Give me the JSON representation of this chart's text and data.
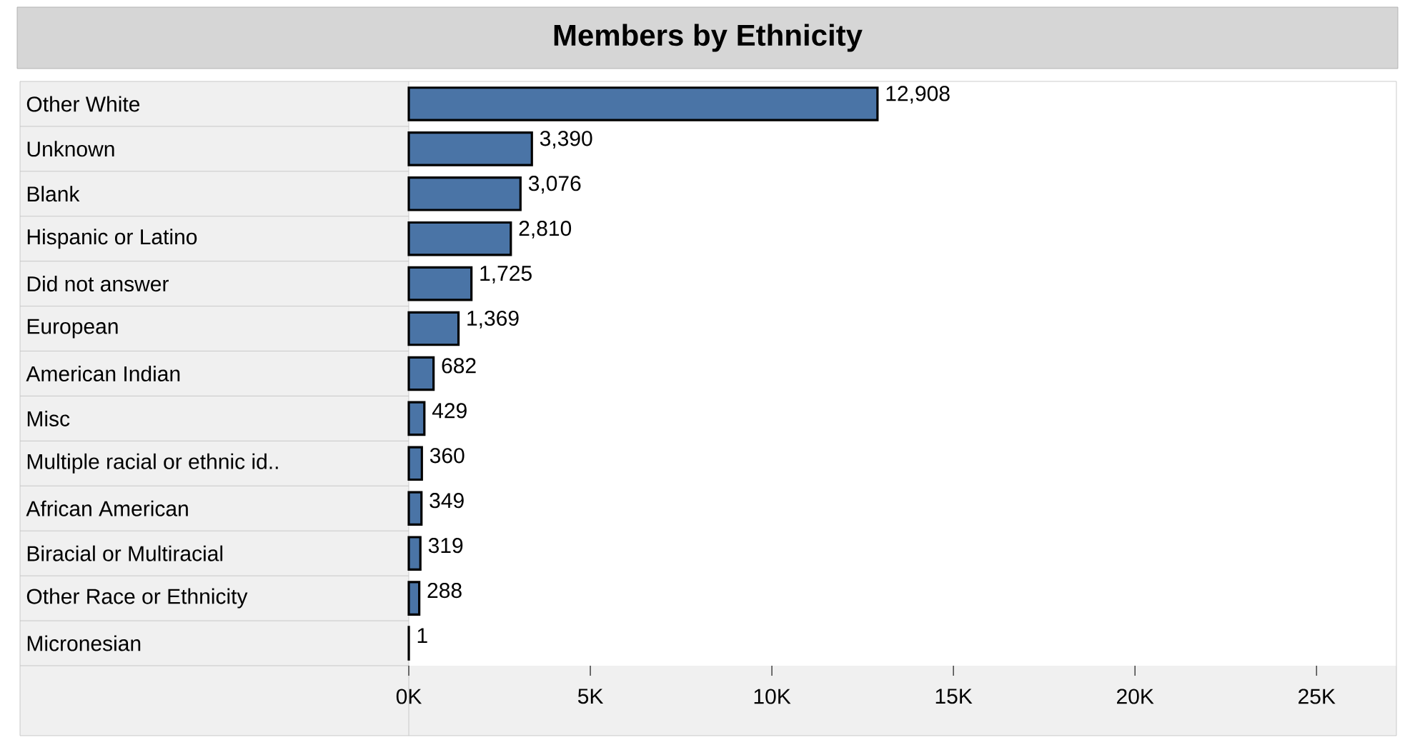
{
  "chart_data": {
    "type": "bar",
    "orientation": "horizontal",
    "title": "Members by Ethnicity",
    "categories": [
      "Other White",
      "Unknown",
      "Blank",
      "Hispanic or Latino",
      "Did not answer",
      "European",
      "American Indian",
      "Misc",
      "Multiple racial or ethnic id..",
      "African American",
      "Biracial or Multiracial",
      "Other Race or Ethnicity",
      "Micronesian"
    ],
    "values": [
      12908,
      3390,
      3076,
      2810,
      1725,
      1369,
      682,
      429,
      360,
      349,
      319,
      288,
      1
    ],
    "value_labels": [
      "12,908",
      "3,390",
      "3,076",
      "2,810",
      "1,725",
      "1,369",
      "682",
      "429",
      "360",
      "349",
      "319",
      "288",
      "1"
    ],
    "color": "#4a74a6",
    "xlim": [
      0,
      27200
    ],
    "xticks": [
      {
        "value": 0,
        "label": "0K"
      },
      {
        "value": 5000,
        "label": "5K"
      },
      {
        "value": 10000,
        "label": "10K"
      },
      {
        "value": 15000,
        "label": "15K"
      },
      {
        "value": 20000,
        "label": "20K"
      },
      {
        "value": 25000,
        "label": "25K"
      }
    ]
  }
}
